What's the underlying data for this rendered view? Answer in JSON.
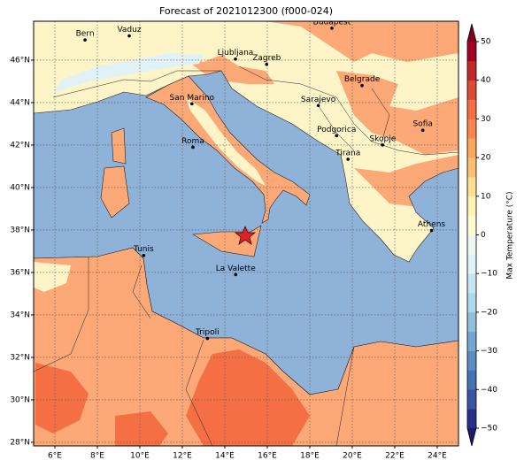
{
  "title": "Forecast of 2021012300 (f000-024)",
  "map": {
    "xlim": [
      5,
      25
    ],
    "ylim": [
      27.83,
      47.83
    ],
    "grid": true,
    "xticks": [
      {
        "value": 6,
        "label": "6°E"
      },
      {
        "value": 8,
        "label": "8°E"
      },
      {
        "value": 10,
        "label": "10°E"
      },
      {
        "value": 12,
        "label": "12°E"
      },
      {
        "value": 14,
        "label": "14°E"
      },
      {
        "value": 16,
        "label": "16°E"
      },
      {
        "value": 18,
        "label": "18°E"
      },
      {
        "value": 20,
        "label": "20°E"
      },
      {
        "value": 22,
        "label": "22°E"
      },
      {
        "value": 24,
        "label": "24°E"
      }
    ],
    "yticks": [
      {
        "value": 28,
        "label": "28°N"
      },
      {
        "value": 30,
        "label": "30°N"
      },
      {
        "value": 32,
        "label": "32°N"
      },
      {
        "value": 34,
        "label": "34°N"
      },
      {
        "value": 36,
        "label": "36°N"
      },
      {
        "value": 38,
        "label": "38°N"
      },
      {
        "value": 40,
        "label": "40°N"
      },
      {
        "value": 42,
        "label": "42°N"
      },
      {
        "value": 44,
        "label": "44°N"
      },
      {
        "value": 46,
        "label": "46°N"
      }
    ],
    "cities": [
      {
        "name": "Bern",
        "lon": 7.42,
        "lat": 46.95
      },
      {
        "name": "Vaduz",
        "lon": 9.5,
        "lat": 47.14
      },
      {
        "name": "Ljubljana",
        "lon": 14.5,
        "lat": 46.05
      },
      {
        "name": "Zagreb",
        "lon": 15.97,
        "lat": 45.8
      },
      {
        "name": "Budapest",
        "lon": 19.04,
        "lat": 47.5
      },
      {
        "name": "Belgrade",
        "lon": 20.46,
        "lat": 44.8
      },
      {
        "name": "Sarajevo",
        "lon": 18.4,
        "lat": 43.86
      },
      {
        "name": "San Marino",
        "lon": 12.45,
        "lat": 43.94
      },
      {
        "name": "Roma",
        "lon": 12.5,
        "lat": 41.9
      },
      {
        "name": "Podgorica",
        "lon": 19.26,
        "lat": 42.44
      },
      {
        "name": "Skopje",
        "lon": 21.43,
        "lat": 42.0
      },
      {
        "name": "Sofia",
        "lon": 23.32,
        "lat": 42.7
      },
      {
        "name": "Tirana",
        "lon": 19.8,
        "lat": 41.33
      },
      {
        "name": "Athens",
        "lon": 23.73,
        "lat": 37.98
      },
      {
        "name": "Tunis",
        "lon": 10.18,
        "lat": 36.8
      },
      {
        "name": "La Valette",
        "lon": 14.51,
        "lat": 35.9
      },
      {
        "name": "Tripoli",
        "lon": 13.18,
        "lat": 32.89
      }
    ]
  },
  "colorbar": {
    "label": "Max Temperature (°C)",
    "lim": [
      -50,
      50
    ],
    "ticks": [
      {
        "value": -50,
        "label": "−50"
      },
      {
        "value": -40,
        "label": "−40"
      },
      {
        "value": -30,
        "label": "−30"
      },
      {
        "value": -20,
        "label": "−20"
      },
      {
        "value": -10,
        "label": "−10"
      },
      0,
      10,
      20,
      30,
      40,
      50
    ],
    "colors": [
      "#2b2f8c",
      "#3a54a4",
      "#4471b2",
      "#5a8dc0",
      "#74a7cf",
      "#91bfdb",
      "#abd9e9",
      "#c5e6f0",
      "#e0f3f8",
      "#eef8f2",
      "#fffbd0",
      "#fff3b2",
      "#fee090",
      "#fdbf71",
      "#fca55d",
      "#f88650",
      "#f46d43",
      "#dd4a33",
      "#c0272b",
      "#a50026"
    ],
    "under": "#1a1a6e",
    "over": "#800020"
  }
}
